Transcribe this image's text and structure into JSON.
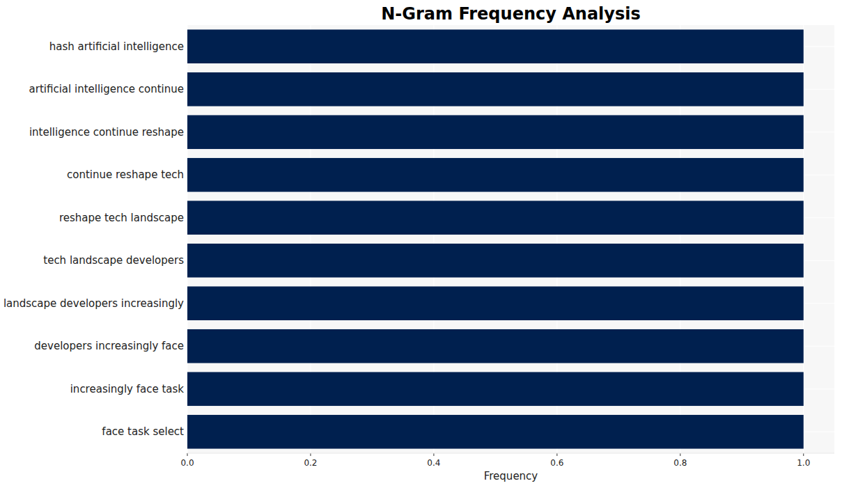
{
  "chart_data": {
    "type": "bar",
    "orientation": "horizontal",
    "title": "N-Gram Frequency Analysis",
    "x_label": "Frequency",
    "categories": [
      "hash artificial intelligence",
      "artificial intelligence continue",
      "intelligence continue reshape",
      "continue reshape tech",
      "reshape tech landscape",
      "tech landscape developers",
      "landscape developers increasingly",
      "developers increasingly face",
      "increasingly face task",
      "face task select"
    ],
    "values": [
      1,
      1,
      1,
      1,
      1,
      1,
      1,
      1,
      1,
      1
    ],
    "color": "#00204f",
    "xlim": [
      0,
      1.05
    ],
    "xticks": [
      {
        "value": 0,
        "label": "0.0"
      },
      0.2,
      0.4,
      0.6,
      0.8,
      {
        "value": 1,
        "label": "1.0"
      }
    ],
    "grid": true
  }
}
